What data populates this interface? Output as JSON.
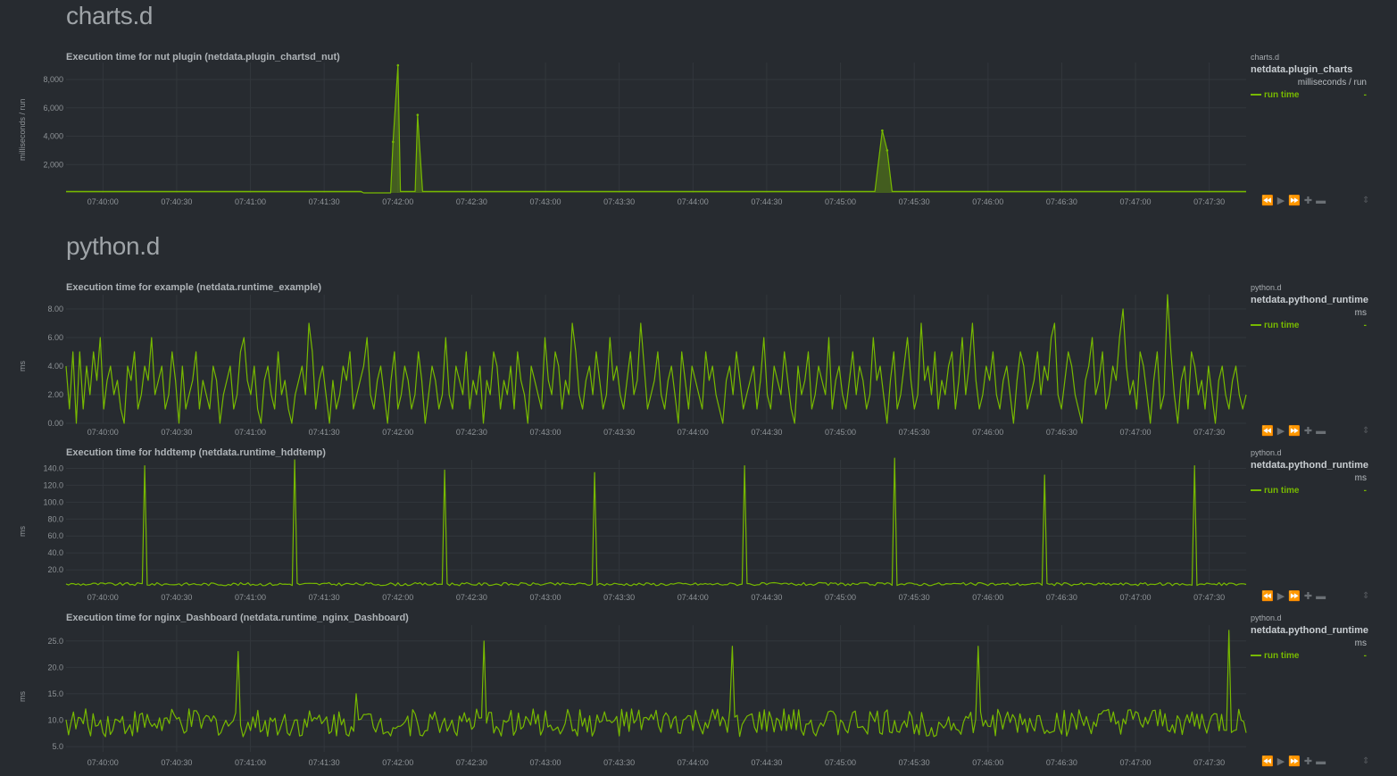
{
  "colors": {
    "series": "#77b900",
    "grid": "#32373c",
    "tick": "#8e9397"
  },
  "sections": [
    {
      "id": "charts",
      "title": "charts.d"
    },
    {
      "id": "python",
      "title": "python.d"
    }
  ],
  "toolbox": {
    "left": "⏪",
    "play": "▶",
    "right": "⏩",
    "zoom_in": "✚",
    "zoom_out": "▬",
    "resize": "⇕"
  },
  "charts": [
    {
      "title": "Execution time for nut plugin (netdata.plugin_chartsd_nut)",
      "ylabel": "milliseconds / run",
      "legend": {
        "plugin": "charts.d",
        "context": "netdata.plugin_charts",
        "units": "milliseconds / run",
        "dimension": "run time",
        "value": "-"
      },
      "chart_data": {
        "type": "area",
        "title": "Execution time for nut plugin (netdata.plugin_chartsd_nut)",
        "ylabel": "milliseconds / run",
        "xlabel": "",
        "x_range": [
          "07:39:45",
          "07:47:45"
        ],
        "ylim": [
          0,
          9200
        ],
        "y_ticks": [
          2000,
          4000,
          6000,
          8000
        ],
        "y_tick_labels": [
          "2,000",
          "4,000",
          "6,000",
          "8,000"
        ],
        "x_ticks": [
          "07:40:00",
          "07:40:30",
          "07:41:00",
          "07:41:30",
          "07:42:00",
          "07:42:30",
          "07:43:00",
          "07:43:30",
          "07:44:00",
          "07:44:30",
          "07:45:00",
          "07:45:30",
          "07:46:00",
          "07:46:30",
          "07:47:00",
          "07:47:30"
        ],
        "series": [
          {
            "name": "run time",
            "points": [
              [
                "07:39:45",
                100
              ],
              [
                "07:41:45",
                100
              ],
              [
                "07:41:46",
                0
              ],
              [
                "07:41:57",
                0
              ],
              [
                "07:41:58",
                3600
              ],
              [
                "07:42:00",
                9000
              ],
              [
                "07:42:01",
                100
              ],
              [
                "07:42:07",
                100
              ],
              [
                "07:42:08",
                5500
              ],
              [
                "07:42:10",
                100
              ],
              [
                "07:45:14",
                100
              ],
              [
                "07:45:17",
                4400
              ],
              [
                "07:45:19",
                3000
              ],
              [
                "07:45:21",
                100
              ],
              [
                "07:47:45",
                100
              ]
            ]
          }
        ]
      }
    },
    {
      "title": "Execution time for example (netdata.runtime_example)",
      "ylabel": "ms",
      "legend": {
        "plugin": "python.d",
        "context": "netdata.pythond_runtime",
        "units": "ms",
        "dimension": "run time",
        "value": "-"
      },
      "chart_data": {
        "type": "line",
        "title": "Execution time for example (netdata.runtime_example)",
        "ylabel": "ms",
        "xlabel": "",
        "x_range": [
          "07:39:45",
          "07:47:45"
        ],
        "ylim": [
          0,
          9
        ],
        "y_ticks": [
          0,
          2,
          4,
          6,
          8
        ],
        "y_tick_labels": [
          "0.00",
          "2.00",
          "4.00",
          "6.00",
          "8.00"
        ],
        "x_ticks": [
          "07:40:00",
          "07:40:30",
          "07:41:00",
          "07:41:30",
          "07:42:00",
          "07:42:30",
          "07:43:00",
          "07:43:30",
          "07:44:00",
          "07:44:30",
          "07:45:00",
          "07:45:30",
          "07:46:00",
          "07:46:30",
          "07:47:00",
          "07:47:30"
        ],
        "series": [
          {
            "name": "run time",
            "values": [
              4,
              1,
              5,
              0,
              5,
              1,
              4,
              2,
              5,
              3,
              6,
              1,
              3,
              4,
              2,
              3,
              1,
              0,
              4,
              3,
              5,
              1,
              2,
              4,
              3,
              6,
              2,
              3,
              4,
              1,
              2,
              5,
              3,
              0,
              4,
              1,
              2,
              3,
              5,
              1,
              3,
              2,
              1,
              4,
              3,
              0,
              2,
              3,
              4,
              1,
              2,
              5,
              6,
              3,
              2,
              4,
              1,
              0,
              3,
              4,
              2,
              1,
              5,
              2,
              3,
              1,
              0,
              2,
              3,
              4,
              2,
              7,
              5,
              1,
              3,
              4,
              2,
              0,
              3,
              1,
              2,
              4,
              3,
              5,
              1,
              2,
              3,
              4,
              6,
              2,
              1,
              3,
              4,
              2,
              0,
              3,
              5,
              1,
              2,
              4,
              3,
              1,
              2,
              5,
              3,
              0,
              2,
              4,
              3,
              1,
              2,
              6,
              2,
              1,
              4,
              3,
              2,
              5,
              1,
              3,
              2,
              4,
              0,
              3,
              2,
              5,
              4,
              1,
              3,
              2,
              4,
              1,
              5,
              3,
              2,
              0,
              4,
              3,
              2,
              1,
              6,
              3,
              2,
              5,
              4,
              1,
              3,
              2,
              7,
              5,
              2,
              1,
              3,
              4,
              2,
              5,
              3,
              1,
              2,
              6,
              3,
              4,
              2,
              1,
              3,
              5,
              2,
              3,
              7,
              4,
              1,
              2,
              3,
              5,
              2,
              1,
              3,
              4,
              2,
              0,
              5,
              3,
              1,
              4,
              3,
              2,
              1,
              5,
              3,
              4,
              2,
              1,
              0,
              3,
              4,
              2,
              5,
              3,
              1,
              2,
              3,
              4,
              1,
              3,
              6,
              2,
              1,
              4,
              3,
              2,
              5,
              3,
              1,
              0,
              4,
              2,
              3,
              5,
              1,
              2,
              4,
              3,
              2,
              6,
              1,
              3,
              4,
              2,
              1,
              3,
              5,
              2,
              4,
              3,
              1,
              2,
              6,
              3,
              4,
              2,
              0,
              3,
              5,
              1,
              2,
              4,
              6,
              3,
              1,
              2,
              7,
              3,
              4,
              2,
              5,
              1,
              3,
              2,
              4,
              5,
              1,
              3,
              6,
              2,
              4,
              7,
              3,
              1,
              2,
              4,
              3,
              5,
              2,
              1,
              3,
              4,
              2,
              0,
              3,
              5,
              4,
              1,
              2,
              3,
              5,
              2,
              4,
              3,
              6,
              7,
              2,
              1,
              3,
              5,
              4,
              2,
              1,
              0,
              3,
              4,
              6,
              2,
              3,
              5,
              1,
              2,
              4,
              3,
              6,
              8,
              4,
              2,
              3,
              1,
              5,
              4,
              2,
              0,
              3,
              5,
              1,
              2,
              9,
              5,
              2,
              0,
              3,
              4,
              1,
              5,
              4,
              2,
              3,
              1,
              4,
              2,
              0,
              3,
              4,
              2,
              1,
              3,
              4,
              2,
              1,
              2
            ]
          }
        ]
      }
    },
    {
      "title": "Execution time for hddtemp (netdata.runtime_hddtemp)",
      "ylabel": "ms",
      "legend": {
        "plugin": "python.d",
        "context": "netdata.pythond_runtime",
        "units": "ms",
        "dimension": "run time",
        "value": "-"
      },
      "chart_data": {
        "type": "line",
        "title": "Execution time for hddtemp (netdata.runtime_hddtemp)",
        "ylabel": "ms",
        "xlabel": "",
        "x_range": [
          "07:39:45",
          "07:47:45"
        ],
        "ylim": [
          0,
          150
        ],
        "y_ticks": [
          20,
          40,
          60,
          80,
          100,
          120,
          140
        ],
        "y_tick_labels": [
          "20.0",
          "40.0",
          "60.0",
          "80.0",
          "100.0",
          "120.0",
          "140.0"
        ],
        "x_ticks": [
          "07:40:00",
          "07:40:30",
          "07:41:00",
          "07:41:30",
          "07:42:00",
          "07:42:30",
          "07:43:00",
          "07:43:30",
          "07:44:00",
          "07:44:30",
          "07:45:00",
          "07:45:30",
          "07:46:00",
          "07:46:30",
          "07:47:00",
          "07:47:30"
        ],
        "baseline": 3,
        "spikes": [
          {
            "t": "07:40:17",
            "v": 143
          },
          {
            "t": "07:41:18",
            "v": 150
          },
          {
            "t": "07:42:19",
            "v": 138
          },
          {
            "t": "07:43:20",
            "v": 135
          },
          {
            "t": "07:44:21",
            "v": 143
          },
          {
            "t": "07:45:22",
            "v": 152
          },
          {
            "t": "07:46:23",
            "v": 132
          },
          {
            "t": "07:47:24",
            "v": 143
          }
        ]
      }
    },
    {
      "title": "Execution time for nginx_Dashboard (netdata.runtime_nginx_Dashboard)",
      "ylabel": "ms",
      "legend": {
        "plugin": "python.d",
        "context": "netdata.pythond_runtime",
        "units": "ms",
        "dimension": "run time",
        "value": "-"
      },
      "chart_data": {
        "type": "line",
        "title": "Execution time for nginx_Dashboard (netdata.runtime_nginx_Dashboard)",
        "ylabel": "ms",
        "xlabel": "",
        "x_range": [
          "07:39:45",
          "07:47:45"
        ],
        "ylim": [
          4,
          28
        ],
        "y_ticks": [
          5,
          10,
          15,
          20,
          25
        ],
        "y_tick_labels": [
          "5.0",
          "10.0",
          "15.0",
          "20.0",
          "25.0"
        ],
        "x_ticks": [
          "07:40:00",
          "07:40:30",
          "07:41:00",
          "07:41:30",
          "07:42:00",
          "07:42:30",
          "07:43:00",
          "07:43:30",
          "07:44:00",
          "07:44:30",
          "07:45:00",
          "07:45:30",
          "07:46:00",
          "07:46:30",
          "07:47:00",
          "07:47:30"
        ],
        "baseline": 9.5,
        "spikes": [
          {
            "t": "07:40:55",
            "v": 23
          },
          {
            "t": "07:41:43",
            "v": 15
          },
          {
            "t": "07:42:35",
            "v": 25
          },
          {
            "t": "07:44:16",
            "v": 24
          },
          {
            "t": "07:45:56",
            "v": 24
          },
          {
            "t": "07:47:38",
            "v": 27
          }
        ]
      }
    }
  ]
}
